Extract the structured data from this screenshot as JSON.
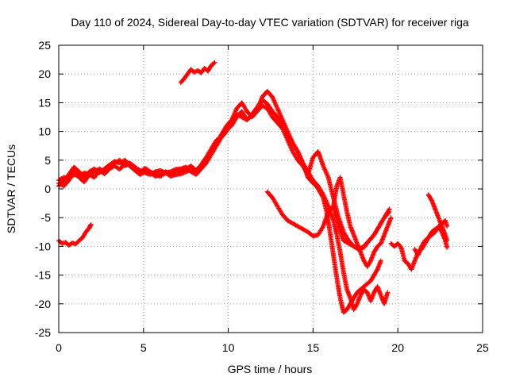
{
  "chart_data": {
    "type": "scatter",
    "title": "Day 110 of 2024, Sidereal Day-to-day VTEC variation (SDTVAR) for receiver riga",
    "xlabel": "GPS time / hours",
    "ylabel": "SDTVAR / TECUs",
    "xlim": [
      0,
      25
    ],
    "ylim": [
      -25,
      25
    ],
    "xticks": [
      "0",
      "5",
      "10",
      "15",
      "20",
      "25"
    ],
    "yticks": [
      "25",
      "20",
      "15",
      "10",
      "5",
      "0",
      "-5",
      "-10",
      "-15",
      "-20",
      "-25"
    ],
    "grid": true,
    "marker": "+",
    "color": "#ff0000",
    "series": [
      {
        "x": [
          0.0,
          0.3,
          0.6,
          0.9,
          1.2,
          1.5,
          1.8,
          2.1,
          2.4,
          2.7,
          3.0,
          3.3,
          3.6,
          3.9,
          4.2,
          4.5,
          4.8,
          5.1,
          5.4,
          5.7,
          6.0,
          6.3,
          6.6,
          6.9,
          7.2,
          7.5,
          7.8,
          8.1,
          8.4,
          8.7,
          9.0,
          9.3,
          9.6,
          9.9,
          10.2,
          10.5,
          10.8,
          11.1,
          11.4,
          11.7,
          12.0,
          12.3,
          12.6,
          12.9,
          13.2,
          13.5,
          13.8,
          14.1,
          14.4,
          14.7,
          15.0,
          15.3,
          15.6,
          15.9,
          16.2,
          16.4,
          16.6,
          16.8,
          17.0,
          17.2,
          17.4,
          17.6,
          17.8,
          18.0,
          18.2,
          18.4,
          18.6,
          18.8,
          19.0,
          19.2,
          19.4
        ],
        "y": [
          1.0,
          0.5,
          1.5,
          3.0,
          2.0,
          1.2,
          2.5,
          2.0,
          3.2,
          2.6,
          3.5,
          4.0,
          3.4,
          4.5,
          4.0,
          3.2,
          2.5,
          3.0,
          2.8,
          2.2,
          2.5,
          3.0,
          2.6,
          3.2,
          3.0,
          3.5,
          4.0,
          3.2,
          4.2,
          5.5,
          7.0,
          8.5,
          9.0,
          10.5,
          11.0,
          12.5,
          13.5,
          12.0,
          13.0,
          14.2,
          15.5,
          14.8,
          13.5,
          12.5,
          11.0,
          9.5,
          8.0,
          6.5,
          4.5,
          3.0,
          1.5,
          0.5,
          -1.0,
          -3.0,
          -5.5,
          -8.0,
          -11.0,
          -14.5,
          -17.5,
          -19.0,
          -21.0,
          -20.0,
          -18.5,
          -17.5,
          -18.0,
          -19.5,
          -18.0,
          -17.0,
          -18.5,
          -20.0,
          -18.0
        ]
      },
      {
        "x": [
          0.0,
          0.3,
          0.6,
          0.9,
          1.2,
          1.5,
          1.8,
          2.1,
          2.4,
          2.7,
          3.0,
          3.3,
          3.6,
          3.9,
          4.2,
          4.5,
          4.8,
          5.1,
          5.4,
          5.7,
          6.0,
          6.3,
          6.6,
          6.9,
          7.2,
          7.5,
          7.8,
          8.1,
          8.4,
          8.7,
          9.0,
          9.3,
          9.6,
          9.9,
          10.2,
          10.5,
          10.8,
          11.1,
          11.4,
          11.7,
          12.0,
          12.3,
          12.6,
          12.9,
          13.2,
          13.5,
          13.8,
          14.1,
          14.4,
          14.7,
          15.0,
          15.3,
          15.6,
          15.9,
          16.2,
          16.5,
          16.8,
          17.1,
          17.4,
          17.7,
          18.0,
          18.3,
          18.6,
          18.9,
          19.2,
          19.5
        ],
        "y": [
          0.5,
          1.5,
          2.5,
          3.8,
          3.0,
          2.0,
          3.0,
          3.5,
          2.8,
          3.5,
          4.2,
          4.8,
          4.5,
          5.0,
          4.2,
          3.5,
          3.0,
          3.6,
          3.0,
          2.5,
          2.2,
          2.8,
          2.2,
          2.5,
          2.6,
          3.0,
          3.3,
          3.0,
          3.6,
          5.0,
          6.5,
          8.0,
          9.5,
          11.0,
          12.0,
          14.0,
          15.0,
          13.5,
          12.5,
          13.5,
          14.5,
          14.0,
          12.5,
          11.5,
          10.5,
          8.5,
          6.5,
          5.0,
          4.0,
          2.5,
          5.5,
          6.5,
          4.0,
          2.0,
          -1.5,
          -5.0,
          -7.5,
          -9.0,
          -10.0,
          -10.5,
          -10.0,
          -9.0,
          -8.0,
          -6.5,
          -5.0,
          -3.5
        ]
      },
      {
        "x": [
          0.0,
          0.3,
          0.6,
          0.9,
          1.2,
          1.5,
          1.8,
          2.1,
          2.4,
          2.7,
          3.0,
          3.3,
          3.6,
          3.9,
          4.2,
          4.5,
          4.8,
          5.1,
          5.4,
          5.7,
          6.0,
          6.3,
          6.6,
          6.9,
          7.2,
          7.5,
          7.8,
          8.1,
          8.4,
          8.7,
          9.0,
          9.3,
          9.6,
          9.9,
          10.2,
          10.5,
          10.8,
          11.1,
          11.4,
          11.7,
          12.0,
          12.3,
          12.6,
          12.9,
          13.2,
          13.5,
          13.8,
          14.1,
          14.4,
          14.7,
          15.0,
          15.2,
          15.4,
          15.6,
          15.8,
          16.0,
          16.2,
          16.4,
          16.6,
          16.8,
          17.0,
          17.2,
          17.4,
          17.6,
          17.8,
          18.0,
          18.2,
          18.4,
          18.6,
          18.8,
          19.0
        ],
        "y": [
          1.5,
          2.0,
          1.8,
          2.5,
          2.2,
          2.8,
          2.5,
          3.0,
          3.5,
          3.0,
          4.0,
          4.5,
          5.0,
          4.0,
          4.5,
          3.8,
          3.2,
          2.8,
          2.5,
          3.0,
          3.2,
          2.8,
          3.0,
          3.4,
          3.5,
          3.8,
          3.0,
          2.5,
          3.5,
          4.5,
          6.0,
          7.5,
          9.0,
          10.0,
          11.5,
          13.0,
          12.5,
          12.0,
          12.8,
          13.5,
          16.0,
          17.0,
          16.0,
          14.0,
          12.0,
          10.0,
          8.0,
          6.5,
          4.5,
          2.0,
          1.0,
          0.5,
          -0.5,
          -1.5,
          -4.0,
          -7.5,
          -11.5,
          -15.5,
          -19.0,
          -21.5,
          -21.0,
          -20.0,
          -19.0,
          -18.0,
          -17.5,
          -17.0,
          -16.5,
          -16.0,
          -15.0,
          -14.0,
          -12.5
        ]
      },
      {
        "x": [
          16.2,
          16.4,
          16.6,
          16.8,
          17.0,
          17.2,
          17.4,
          17.6,
          17.8,
          18.0,
          18.2,
          18.4,
          18.6,
          18.8,
          19.0,
          19.2,
          19.4,
          19.6
        ],
        "y": [
          -3.0,
          0.5,
          2.0,
          -1.0,
          -4.0,
          -6.5,
          -8.0,
          -9.5,
          -11.0,
          -12.5,
          -13.5,
          -12.5,
          -11.0,
          -10.0,
          -9.5,
          -8.0,
          -6.5,
          -5.0
        ]
      },
      {
        "x": [
          12.3,
          12.6,
          12.9,
          13.2,
          13.5,
          13.8,
          14.1,
          14.4,
          14.7,
          15.0,
          15.3,
          15.6,
          15.9,
          16.2,
          16.5,
          16.8,
          17.1,
          17.4,
          17.7,
          18.0,
          18.3,
          18.6,
          18.9,
          19.2,
          19.5
        ],
        "y": [
          -0.5,
          -1.5,
          -3.0,
          -4.5,
          -5.5,
          -6.0,
          -6.5,
          -7.0,
          -7.5,
          -8.2,
          -8.0,
          -6.5,
          -4.0,
          -3.0,
          -6.5,
          -9.0,
          -9.5,
          -10.0,
          -10.5,
          -10.2,
          -9.0,
          -8.0,
          -6.5,
          -5.0,
          -4.0
        ]
      },
      {
        "x": [
          0.0,
          0.2,
          0.4,
          0.6,
          0.8,
          1.0,
          1.2,
          1.4,
          1.6,
          1.8,
          1.9
        ],
        "y": [
          -9.0,
          -9.5,
          -9.3,
          -9.8,
          -9.4,
          -9.6,
          -9.0,
          -8.5,
          -7.5,
          -6.8,
          -6.2
        ]
      },
      {
        "x": [
          7.2,
          7.4,
          7.6,
          7.8,
          8.0,
          8.2,
          8.4,
          8.6,
          8.8,
          9.0,
          9.2
        ],
        "y": [
          18.5,
          19.2,
          20.0,
          20.8,
          20.3,
          20.6,
          20.2,
          21.0,
          20.5,
          21.5,
          22.0
        ]
      },
      {
        "x": [
          19.6,
          19.8,
          20.0,
          20.2,
          20.4,
          20.6,
          20.8,
          21.0,
          21.2,
          21.4,
          21.6,
          21.8,
          22.0,
          22.2,
          22.4,
          22.6,
          22.8,
          22.9
        ],
        "y": [
          -9.5,
          -10.0,
          -9.5,
          -10.2,
          -12.5,
          -13.0,
          -14.0,
          -12.5,
          -11.0,
          -10.5,
          -9.5,
          -8.5,
          -7.5,
          -7.0,
          -6.8,
          -6.0,
          -5.5,
          -6.5
        ]
      },
      {
        "x": [
          21.0,
          21.2,
          21.4,
          21.6,
          21.8,
          22.0,
          22.2,
          22.4,
          22.6,
          22.8,
          22.9
        ],
        "y": [
          -10.5,
          -11.5,
          -10.0,
          -9.0,
          -8.5,
          -8.0,
          -7.5,
          -6.5,
          -7.5,
          -9.0,
          -10.2
        ]
      },
      {
        "x": [
          21.8,
          22.0,
          22.2,
          22.4,
          22.6,
          22.8,
          22.9
        ],
        "y": [
          -1.0,
          -2.0,
          -3.5,
          -5.0,
          -6.5,
          -8.0,
          -9.0
        ]
      }
    ]
  }
}
